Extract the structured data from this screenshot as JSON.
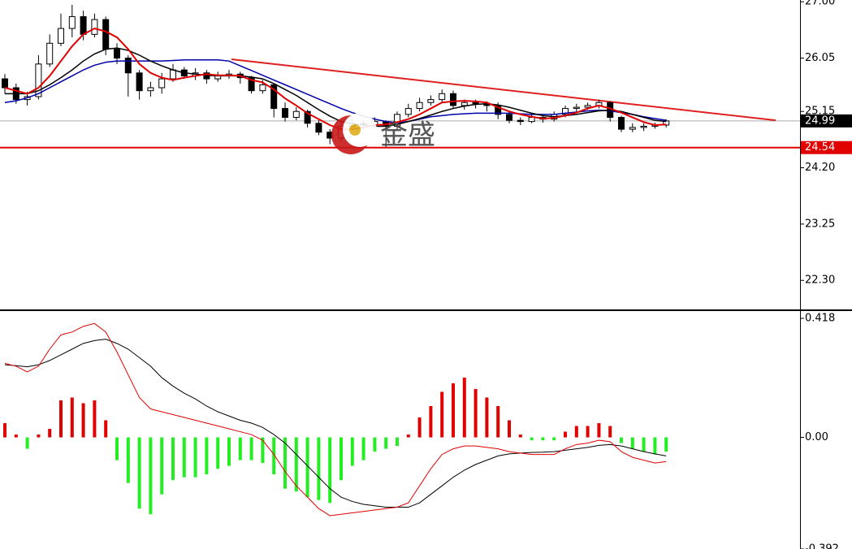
{
  "chart_data": [
    {
      "type": "candlestick",
      "ylim": [
        21.81,
        27.03
      ],
      "yticks": [
        {
          "value": 27,
          "label": "27.00"
        },
        {
          "value": 26.05,
          "label": "26.05"
        },
        {
          "value": 25.15,
          "label": "25.15"
        },
        {
          "value": 24.2,
          "label": "24.20"
        },
        {
          "value": 23.25,
          "label": "23.25"
        },
        {
          "value": 22.3,
          "label": "22.30"
        }
      ],
      "open": [
        25.7,
        25.55,
        25.35,
        25.4,
        25.95,
        26.3,
        26.55,
        26.75,
        26.45,
        26.7,
        26.2,
        26.05,
        25.8,
        25.5,
        25.55,
        25.7,
        25.85,
        25.75,
        25.8,
        25.7,
        25.75,
        25.78,
        25.72,
        25.5,
        25.6,
        25.2,
        25.05,
        25.15,
        24.95,
        24.8,
        24.7,
        24.9,
        24.95,
        24.92,
        24.98,
        24.9,
        25.1,
        25.2,
        25.3,
        25.35,
        25.45,
        25.25,
        25.3,
        25.28,
        25.25,
        25.1,
        25.0,
        24.98,
        25.05,
        25.02,
        25.1,
        25.2,
        25.22,
        25.25,
        25.3,
        25.05,
        24.85,
        24.88,
        24.9,
        24.92
      ],
      "high": [
        25.78,
        25.62,
        25.48,
        26.1,
        26.45,
        26.8,
        26.95,
        26.85,
        26.8,
        26.75,
        26.3,
        26.1,
        25.85,
        25.65,
        25.8,
        25.95,
        25.9,
        25.88,
        25.85,
        25.82,
        25.85,
        25.82,
        25.75,
        25.68,
        25.62,
        25.3,
        25.22,
        25.18,
        25.0,
        24.85,
        24.98,
        25.02,
        25.0,
        25.05,
        25.0,
        25.15,
        25.28,
        25.38,
        25.42,
        25.52,
        25.5,
        25.35,
        25.35,
        25.32,
        25.3,
        25.15,
        25.05,
        25.1,
        25.08,
        25.15,
        25.25,
        25.28,
        25.3,
        25.35,
        25.32,
        25.08,
        24.95,
        24.95,
        24.96,
        25.02
      ],
      "low": [
        25.45,
        25.28,
        25.25,
        25.35,
        25.9,
        26.25,
        26.4,
        26.35,
        26.4,
        26.1,
        25.95,
        25.4,
        25.35,
        25.4,
        25.45,
        25.65,
        25.7,
        25.68,
        25.62,
        25.65,
        25.7,
        25.62,
        25.45,
        25.45,
        25.05,
        24.98,
        25.0,
        24.88,
        24.75,
        24.6,
        24.65,
        24.85,
        24.85,
        24.88,
        24.55,
        24.85,
        25.05,
        25.15,
        25.25,
        25.3,
        25.2,
        25.18,
        25.2,
        25.15,
        25.02,
        24.95,
        24.92,
        24.95,
        24.96,
        24.98,
        25.05,
        25.15,
        25.18,
        25.2,
        24.98,
        24.8,
        24.8,
        24.82,
        24.86,
        24.88
      ],
      "close": [
        25.55,
        25.35,
        25.4,
        25.95,
        26.3,
        26.55,
        26.75,
        26.45,
        26.7,
        26.2,
        26.05,
        25.8,
        25.5,
        25.55,
        25.7,
        25.85,
        25.75,
        25.8,
        25.7,
        25.75,
        25.78,
        25.72,
        25.5,
        25.6,
        25.2,
        25.05,
        25.15,
        24.95,
        24.8,
        24.7,
        24.9,
        24.95,
        24.92,
        24.98,
        24.9,
        25.1,
        25.2,
        25.3,
        25.35,
        25.45,
        25.25,
        25.3,
        25.28,
        25.25,
        25.1,
        25.0,
        24.98,
        25.05,
        25.02,
        25.1,
        25.2,
        25.22,
        25.25,
        25.3,
        25.05,
        24.85,
        24.88,
        24.9,
        24.92,
        24.99
      ],
      "lines": [
        {
          "color": "#0000aa",
          "values": [
            25.3,
            25.33,
            25.38,
            25.45,
            25.55,
            25.65,
            25.75,
            25.85,
            25.93,
            25.98,
            26.0,
            26.0,
            26.0,
            26.0,
            26.0,
            26.01,
            26.02,
            26.02,
            26.02,
            26.02,
            26.0,
            25.92,
            25.84,
            25.76,
            25.68,
            25.6,
            25.52,
            25.44,
            25.36,
            25.28,
            25.2,
            25.13,
            25.07,
            25.02,
            24.98,
            24.96,
            24.98,
            25.02,
            25.06,
            25.08,
            25.1,
            25.11,
            25.12,
            25.12,
            25.12,
            25.12,
            25.11,
            25.1,
            25.1,
            25.1,
            25.12,
            25.14,
            25.16,
            25.17,
            25.16,
            25.13,
            25.1,
            25.06,
            25.03,
            25.0
          ]
        },
        {
          "color": "#000000",
          "values": [
            25.45,
            25.45,
            25.45,
            25.5,
            25.6,
            25.72,
            25.85,
            26.0,
            26.12,
            26.2,
            26.22,
            26.18,
            26.1,
            26.0,
            25.92,
            25.85,
            25.8,
            25.78,
            25.76,
            25.75,
            25.75,
            25.75,
            25.73,
            25.7,
            25.62,
            25.52,
            25.42,
            25.3,
            25.18,
            25.07,
            24.98,
            24.94,
            24.92,
            24.9,
            24.9,
            24.93,
            24.98,
            25.03,
            25.09,
            25.15,
            25.2,
            25.24,
            25.27,
            25.28,
            25.26,
            25.22,
            25.17,
            25.12,
            25.08,
            25.06,
            25.08,
            25.1,
            25.13,
            25.16,
            25.17,
            25.15,
            25.1,
            25.05,
            25.0,
            24.98
          ]
        },
        {
          "color": "#e00000",
          "values": [
            25.55,
            25.5,
            25.45,
            25.55,
            25.75,
            26.0,
            26.25,
            26.45,
            26.55,
            26.5,
            26.4,
            26.2,
            25.95,
            25.8,
            25.72,
            25.68,
            25.72,
            25.75,
            25.78,
            25.76,
            25.76,
            25.75,
            25.68,
            25.64,
            25.52,
            25.37,
            25.25,
            25.12,
            25.02,
            24.92,
            24.85,
            24.85,
            24.88,
            24.92,
            24.93,
            24.97,
            25.02,
            25.1,
            25.2,
            25.3,
            25.32,
            25.33,
            25.32,
            25.3,
            25.22,
            25.15,
            25.1,
            25.06,
            25.03,
            25.04,
            25.08,
            25.13,
            25.2,
            25.25,
            25.2,
            25.13,
            25.05,
            24.97,
            24.92,
            24.93
          ]
        }
      ],
      "trendline": [
        26.03,
        25.0
      ],
      "trendline_color": "#e02020",
      "bid": 24.99,
      "level": 24.54,
      "level_color": "#e00000",
      "watermark": "金盛"
    },
    {
      "type": "macd",
      "ylim": [
        -0.392,
        0.438
      ],
      "yticks": [
        0.418,
        {
          "value": 0,
          "label": "0.00"
        },
        {
          "value": -0.392,
          "label": "-0.392"
        }
      ],
      "up_color": "#e00000",
      "down_color": "#22ee22",
      "histogram": [
        0.05,
        0.01,
        -0.04,
        0.01,
        0.03,
        0.13,
        0.14,
        0.12,
        0.13,
        0.06,
        -0.08,
        -0.16,
        -0.25,
        -0.27,
        -0.2,
        -0.15,
        -0.14,
        -0.14,
        -0.13,
        -0.11,
        -0.1,
        -0.08,
        -0.08,
        -0.09,
        -0.13,
        -0.18,
        -0.19,
        -0.21,
        -0.22,
        -0.23,
        -0.15,
        -0.1,
        -0.08,
        -0.05,
        -0.04,
        -0.03,
        0.01,
        0.07,
        0.11,
        0.16,
        0.19,
        0.21,
        0.17,
        0.14,
        0.11,
        0.06,
        0.01,
        -0.01,
        -0.01,
        -0.01,
        0.02,
        0.04,
        0.04,
        0.05,
        0.04,
        -0.02,
        -0.04,
        -0.05,
        -0.06,
        -0.05
      ],
      "macd": {
        "color": "#e00000",
        "values": [
          0.26,
          0.25,
          0.23,
          0.25,
          0.31,
          0.36,
          0.37,
          0.39,
          0.4,
          0.37,
          0.3,
          0.22,
          0.14,
          0.1,
          0.09,
          0.08,
          0.07,
          0.06,
          0.05,
          0.04,
          0.03,
          0.02,
          0.01,
          -0.01,
          -0.06,
          -0.12,
          -0.17,
          -0.21,
          -0.25,
          -0.275,
          -0.27,
          -0.265,
          -0.26,
          -0.255,
          -0.25,
          -0.245,
          -0.23,
          -0.17,
          -0.11,
          -0.06,
          -0.04,
          -0.03,
          -0.03,
          -0.035,
          -0.04,
          -0.05,
          -0.055,
          -0.06,
          -0.06,
          -0.06,
          -0.04,
          -0.025,
          -0.02,
          -0.01,
          -0.015,
          -0.05,
          -0.07,
          -0.08,
          -0.09,
          -0.085
        ]
      },
      "signal": {
        "color": "#000000",
        "values": [
          0.255,
          0.252,
          0.248,
          0.255,
          0.27,
          0.29,
          0.31,
          0.33,
          0.34,
          0.345,
          0.33,
          0.31,
          0.28,
          0.25,
          0.21,
          0.18,
          0.155,
          0.135,
          0.11,
          0.09,
          0.075,
          0.06,
          0.05,
          0.035,
          0.01,
          -0.02,
          -0.06,
          -0.1,
          -0.14,
          -0.18,
          -0.21,
          -0.225,
          -0.235,
          -0.24,
          -0.245,
          -0.245,
          -0.245,
          -0.23,
          -0.2,
          -0.17,
          -0.14,
          -0.115,
          -0.095,
          -0.08,
          -0.065,
          -0.058,
          -0.055,
          -0.053,
          -0.052,
          -0.05,
          -0.045,
          -0.04,
          -0.035,
          -0.028,
          -0.025,
          -0.03,
          -0.04,
          -0.05,
          -0.058,
          -0.065
        ]
      }
    }
  ]
}
